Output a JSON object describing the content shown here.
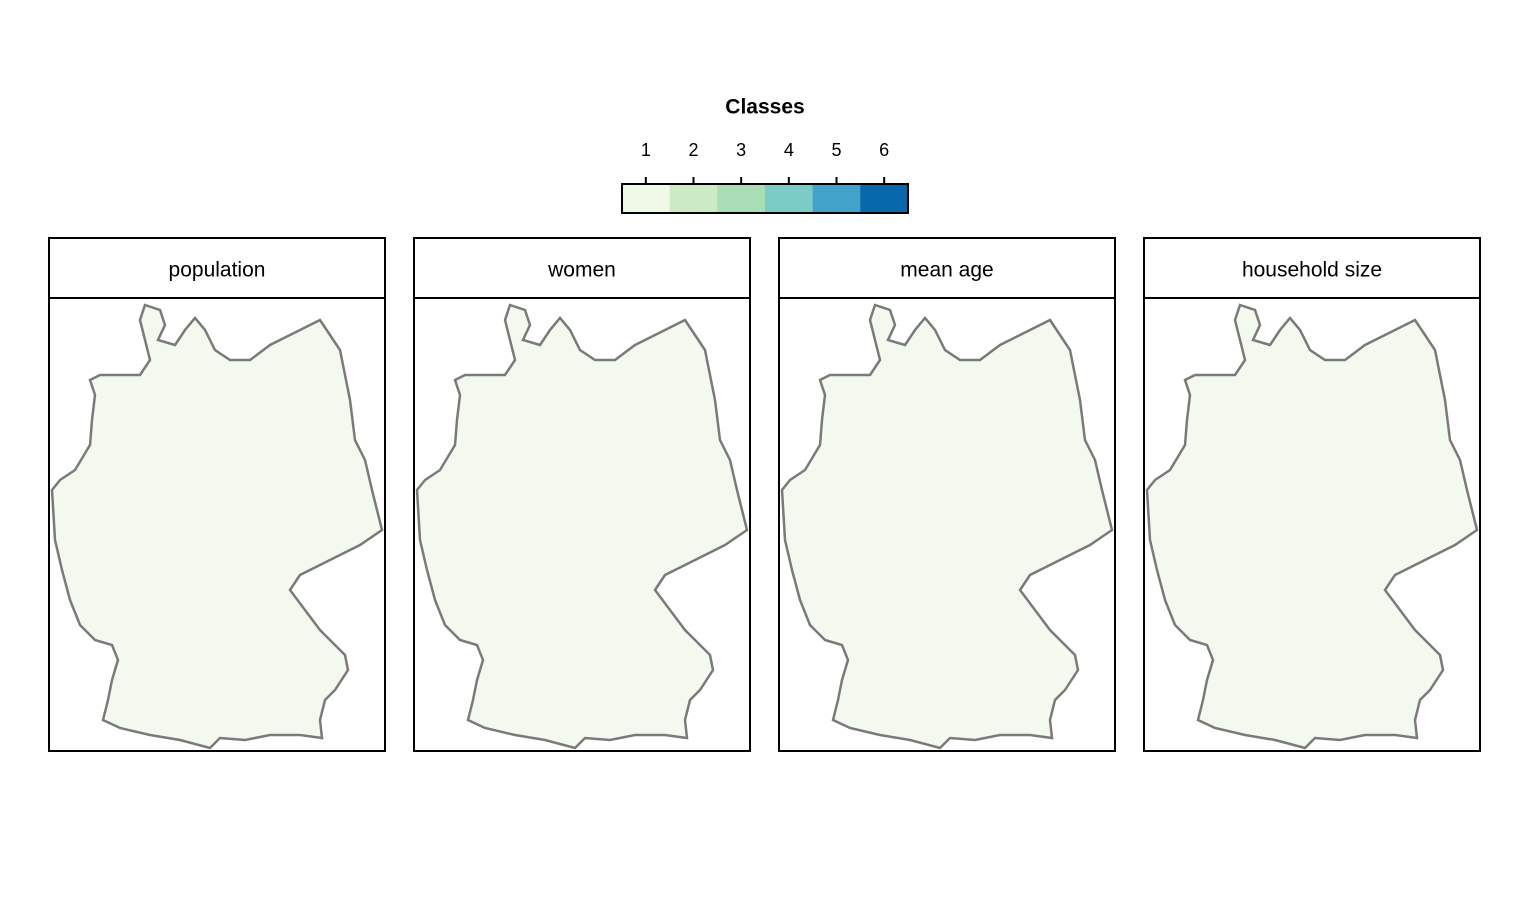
{
  "legend": {
    "title": "Classes",
    "classes": [
      1,
      2,
      3,
      4,
      5,
      6
    ],
    "colors": [
      "#f0f9e8",
      "#ccebc5",
      "#a8ddb5",
      "#7bccc4",
      "#43a2ca",
      "#0868ac"
    ]
  },
  "panels": [
    {
      "title": "population"
    },
    {
      "title": "women"
    },
    {
      "title": "mean age"
    },
    {
      "title": "household size"
    }
  ]
}
